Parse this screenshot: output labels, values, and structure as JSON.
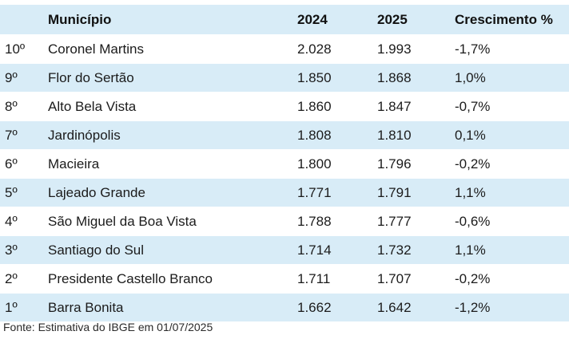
{
  "table": {
    "headers": {
      "rank": "",
      "municipio": "Município",
      "y2024": "2024",
      "y2025": "2025",
      "crescimento": "Crescimento %"
    },
    "rows": [
      {
        "rank": "10º",
        "municipio": "Coronel Martins",
        "y2024": "2.028",
        "y2025": "1.993",
        "crescimento": "-1,7%"
      },
      {
        "rank": "9º",
        "municipio": "Flor do Sertão",
        "y2024": "1.850",
        "y2025": "1.868",
        "crescimento": "1,0%"
      },
      {
        "rank": "8º",
        "municipio": "Alto Bela Vista",
        "y2024": "1.860",
        "y2025": "1.847",
        "crescimento": "-0,7%"
      },
      {
        "rank": "7º",
        "municipio": "Jardinópolis",
        "y2024": "1.808",
        "y2025": "1.810",
        "crescimento": "0,1%"
      },
      {
        "rank": "6º",
        "municipio": "Macieira",
        "y2024": "1.800",
        "y2025": "1.796",
        "crescimento": "-0,2%"
      },
      {
        "rank": "5º",
        "municipio": "Lajeado Grande",
        "y2024": "1.771",
        "y2025": "1.791",
        "crescimento": "1,1%"
      },
      {
        "rank": "4º",
        "municipio": "São Miguel da Boa Vista",
        "y2024": "1.788",
        "y2025": "1.777",
        "crescimento": "-0,6%"
      },
      {
        "rank": "3º",
        "municipio": "Santiago do Sul",
        "y2024": "1.714",
        "y2025": "1.732",
        "crescimento": "1,1%"
      },
      {
        "rank": "2º",
        "municipio": "Presidente Castello Branco",
        "y2024": "1.711",
        "y2025": "1.707",
        "crescimento": "-0,2%"
      },
      {
        "rank": "1º",
        "municipio": "Barra Bonita",
        "y2024": "1.662",
        "y2025": "1.642",
        "crescimento": "-1,2%"
      }
    ]
  },
  "source": "Fonte: Estimativa do IBGE em 01/07/2025",
  "colors": {
    "band": "#d8ecf7",
    "text": "#1b1b1b"
  }
}
